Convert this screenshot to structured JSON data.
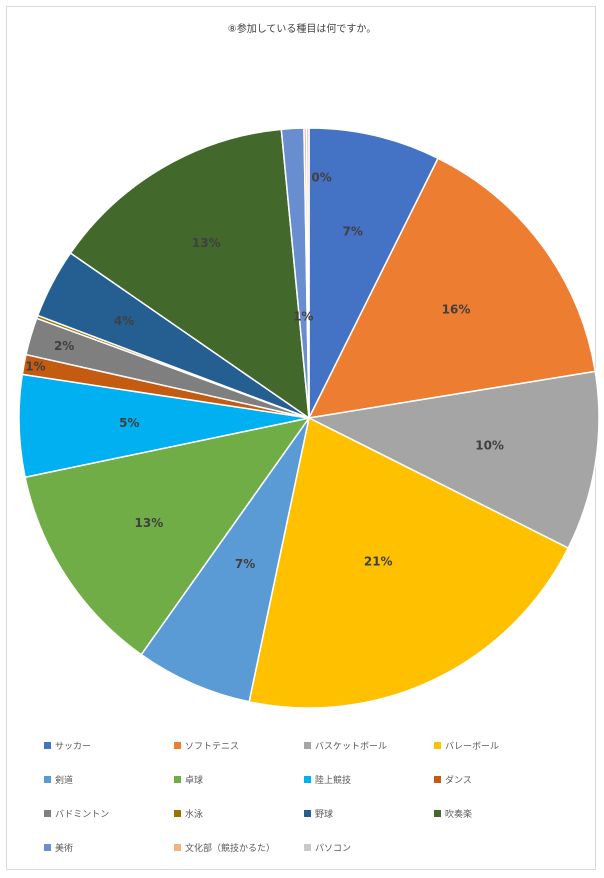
{
  "chart_data": {
    "type": "pie",
    "title": "⑧参加している種目は何ですか。",
    "start_angle_deg": 0,
    "direction": "clockwise",
    "legend_position": "bottom",
    "slices": [
      {
        "name": "サッカー",
        "label": "7%",
        "value": 7,
        "color": "#4472C4"
      },
      {
        "name": "ソフトテニス",
        "label": "16%",
        "value": 16,
        "color": "#ED7D31"
      },
      {
        "name": "バスケットボール",
        "label": "10%",
        "value": 10,
        "color": "#A5A5A5"
      },
      {
        "name": "バレーボール",
        "label": "21%",
        "value": 21,
        "color": "#FFC000"
      },
      {
        "name": "剣道",
        "label": "7%",
        "value": 7,
        "color": "#5B9BD5"
      },
      {
        "name": "卓球",
        "label": "13%",
        "value": 13,
        "color": "#70AD47"
      },
      {
        "name": "陸上競技",
        "label": "5%",
        "value": 5,
        "color": "#00B0F0"
      },
      {
        "name": "ダンス",
        "label": "1%",
        "value": 1,
        "color": "#C55A11"
      },
      {
        "name": "バドミントン",
        "label": "2%",
        "value": 2,
        "color": "#7F7F7F"
      },
      {
        "name": "水泳",
        "label": "0%",
        "value": 0,
        "color": "#997300"
      },
      {
        "name": "野球",
        "label": "4%",
        "value": 4,
        "color": "#255E91"
      },
      {
        "name": "吹奏楽",
        "label": "13%",
        "value": 13,
        "color": "#43682B"
      },
      {
        "name": "美術",
        "label": "1%",
        "value": 1,
        "color": "#698ED0"
      },
      {
        "name": "文化部（競技かるた）",
        "label": "0%",
        "value": 0,
        "color": "#F4B183"
      },
      {
        "name": "パソコン",
        "label": "0%",
        "value": 0,
        "color": "#C9C9C9"
      }
    ]
  }
}
